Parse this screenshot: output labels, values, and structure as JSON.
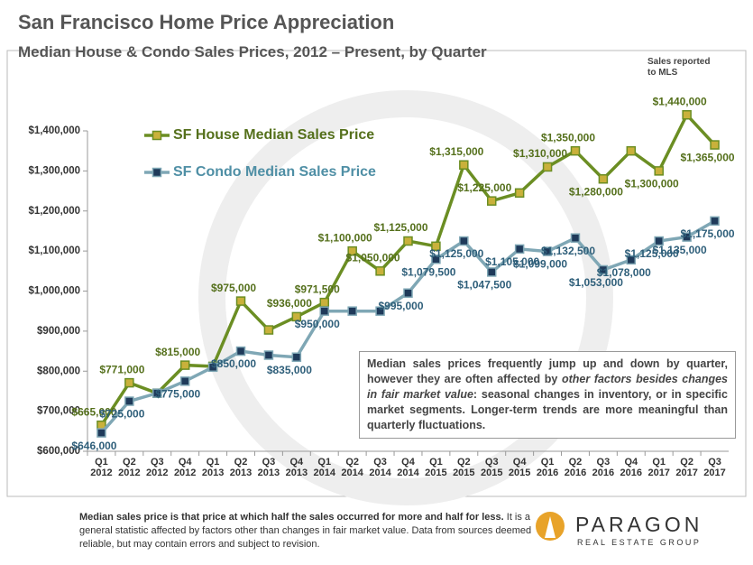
{
  "chart_data": {
    "type": "line",
    "title": "San Francisco Home Price Appreciation",
    "subtitle": "Median House & Condo Sales Prices, 2012 – Present, by Quarter",
    "note": "Sales reported to MLS",
    "categories": [
      "Q1 2012",
      "Q2 2012",
      "Q3 2012",
      "Q4 2012",
      "Q1 2013",
      "Q2 2013",
      "Q3 2013",
      "Q4 2013",
      "Q1 2014",
      "Q2 2014",
      "Q3 2014",
      "Q4 2014",
      "Q1 2015",
      "Q2 2015",
      "Q3 2015",
      "Q4 2015",
      "Q1 2016",
      "Q2 2016",
      "Q3 2016",
      "Q4 2016",
      "Q1 2017",
      "Q2 2017",
      "Q3 2017"
    ],
    "series": [
      {
        "name": "SF House Median Sales Price",
        "color": "#6b8e23",
        "marker_color": "#c9b13b",
        "values": [
          665000,
          771000,
          745000,
          815000,
          812000,
          975000,
          903000,
          936000,
          971500,
          1100000,
          1050000,
          1125000,
          1112000,
          1315000,
          1225000,
          1245000,
          1310000,
          1350000,
          1280000,
          1350000,
          1300000,
          1440000,
          1365000
        ],
        "value_labels": [
          "$665,000",
          "$771,000",
          null,
          "$815,000",
          null,
          "$975,000",
          null,
          "$936,000",
          "$971,500",
          "$1,100,000",
          "$1,050,000",
          "$1,125,000",
          null,
          "$1,315,000",
          "$1,225,000",
          null,
          "$1,310,000",
          "$1,350,000",
          "$1,280,000",
          null,
          "$1,300,000",
          "$1,440,000",
          "$1,365,000"
        ]
      },
      {
        "name": "SF Condo Median Sales Price",
        "color": "#7fa7b5",
        "marker_color": "#1f3a5a",
        "values": [
          646000,
          725000,
          745000,
          775000,
          810000,
          850000,
          840000,
          835000,
          950000,
          950000,
          950000,
          995000,
          1079500,
          1125000,
          1047500,
          1105000,
          1099000,
          1132500,
          1053000,
          1078000,
          1125000,
          1135000,
          1175000
        ],
        "value_labels": [
          "$646,000",
          "$725,000",
          null,
          "$775,000",
          null,
          "$850,000",
          null,
          "$835,000",
          "$950,000",
          null,
          null,
          "$995,000",
          "$1,079,500",
          "$1,125,000",
          "$1,047,500",
          "$1,105,000",
          "$1,099,000",
          "$1,132,500",
          "$1,053,000",
          "$1,078,000",
          "$1,125,000",
          "$1,135,000",
          "$1,175,000"
        ]
      }
    ],
    "ylim": [
      600000,
      1400000
    ],
    "yticks": [
      {
        "value": 600000,
        "label": "$600,000"
      },
      {
        "value": 700000,
        "label": "$700,000"
      },
      {
        "value": 800000,
        "label": "$800,000"
      },
      {
        "value": 900000,
        "label": "$900,000"
      },
      {
        "value": 1000000,
        "label": "$1,000,000"
      },
      {
        "value": 1100000,
        "label": "$1,100,000"
      },
      {
        "value": 1200000,
        "label": "$1,200,000"
      },
      {
        "value": 1300000,
        "label": "$1,300,000"
      },
      {
        "value": 1400000,
        "label": "$1,400,000"
      }
    ],
    "legend": "upper left",
    "annotation": [
      "Median sales prices frequently jump up and down by quarter, however they are often affected by ",
      "other factors besides changes in fair market value",
      ": seasonal changes in inventory, or in specific market segments. Longer-term trends are more meaningful than quarterly fluctuations."
    ],
    "footer": [
      "Median sales price is that price at which half the sales occurred for more and half for less.",
      " It is a general statistic affected by factors other than changes in fair market value. Data from sources deemed reliable, but may contain errors and subject to revision."
    ],
    "logo": {
      "name": "PARAGON",
      "tagline": "REAL ESTATE GROUP"
    }
  }
}
